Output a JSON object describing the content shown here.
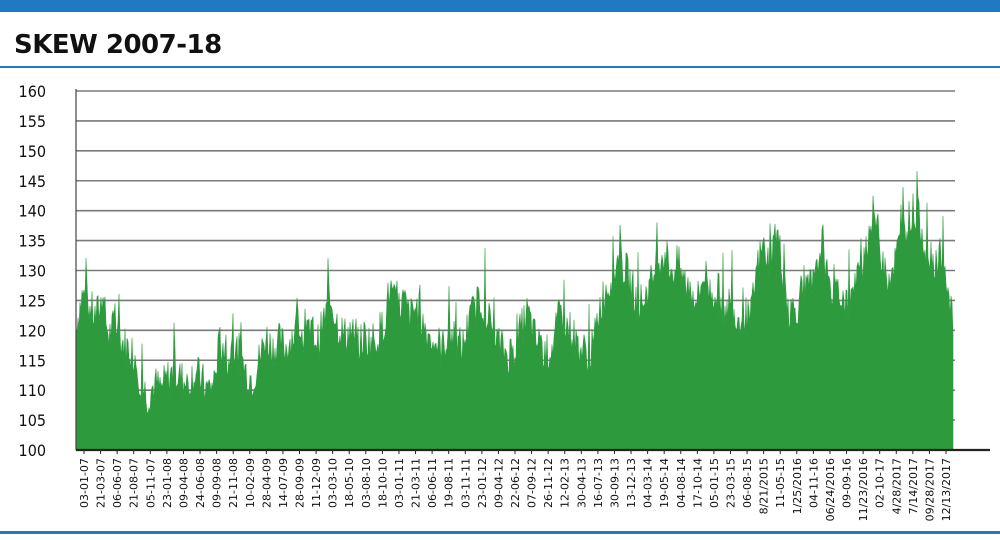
{
  "header": {
    "title": "SKEW 2007-18"
  },
  "colors": {
    "accent": "#1f7ac1",
    "series": "#2e9a3e",
    "grid": "#7a7a7a"
  },
  "chart_data": {
    "type": "area",
    "title": "SKEW 2007-18",
    "xlabel": "",
    "ylabel": "",
    "ylim": [
      100,
      160
    ],
    "grid": true,
    "legend": "none",
    "y_ticks": [
      100,
      105,
      110,
      115,
      120,
      125,
      130,
      135,
      140,
      145,
      150,
      155,
      160
    ],
    "x_tick_labels": [
      "03-01-07",
      "21-03-07",
      "06-06-07",
      "21-08-07",
      "05-11-07",
      "23-01-08",
      "09-04-08",
      "24-06-08",
      "09-09-08",
      "21-11-08",
      "10-02-09",
      "28-04-09",
      "14-07-09",
      "28-09-09",
      "11-12-09",
      "03-03-10",
      "18-05-10",
      "03-08-10",
      "18-10-10",
      "03-01-11",
      "21-03-11",
      "06-06-11",
      "19-08-11",
      "03-11-11",
      "23-01-12",
      "09-04-12",
      "22-06-12",
      "07-09-12",
      "26-11-12",
      "12-02-13",
      "30-04-13",
      "16-07-13",
      "30-09-13",
      "13-12-13",
      "04-03-14",
      "19-05-14",
      "04-08-14",
      "17-10-14",
      "05-01-15",
      "23-03-15",
      "06-08-15",
      "8/21/2015",
      "11-05-15",
      "1/25/2016",
      "04-11-16",
      "06/24/2016",
      "09-09-16",
      "11/23/2016",
      "02-10-17",
      "4/28/2017",
      "7/14/2017",
      "09/28/2017",
      "12/13/2017"
    ],
    "series": [
      {
        "values": [
          {
            "x": "2007-01",
            "y": 121
          },
          {
            "x": "2007-02",
            "y": 126
          },
          {
            "x": "2007-03",
            "y": 124
          },
          {
            "x": "2007-04",
            "y": 122
          },
          {
            "x": "2007-05",
            "y": 125
          },
          {
            "x": "2007-06",
            "y": 119
          },
          {
            "x": "2007-07",
            "y": 121
          },
          {
            "x": "2007-08",
            "y": 118
          },
          {
            "x": "2007-09",
            "y": 117
          },
          {
            "x": "2007-10",
            "y": 116
          },
          {
            "x": "2007-11",
            "y": 111
          },
          {
            "x": "2007-12",
            "y": 109
          },
          {
            "x": "2008-01",
            "y": 111
          },
          {
            "x": "2008-02",
            "y": 110
          },
          {
            "x": "2008-03",
            "y": 112
          },
          {
            "x": "2008-04",
            "y": 113
          },
          {
            "x": "2008-05",
            "y": 112
          },
          {
            "x": "2008-06",
            "y": 111
          },
          {
            "x": "2008-07",
            "y": 113
          },
          {
            "x": "2008-08",
            "y": 112
          },
          {
            "x": "2008-09",
            "y": 110
          },
          {
            "x": "2008-10",
            "y": 111
          },
          {
            "x": "2008-11",
            "y": 118
          },
          {
            "x": "2008-12",
            "y": 114
          },
          {
            "x": "2009-01",
            "y": 117
          },
          {
            "x": "2009-02",
            "y": 116
          },
          {
            "x": "2009-03",
            "y": 113
          },
          {
            "x": "2009-04",
            "y": 112
          },
          {
            "x": "2009-05",
            "y": 115
          },
          {
            "x": "2009-06",
            "y": 119
          },
          {
            "x": "2009-07",
            "y": 117
          },
          {
            "x": "2009-08",
            "y": 118
          },
          {
            "x": "2009-09",
            "y": 117
          },
          {
            "x": "2009-10",
            "y": 119
          },
          {
            "x": "2009-11",
            "y": 121
          },
          {
            "x": "2009-12",
            "y": 118
          },
          {
            "x": "2010-01",
            "y": 120
          },
          {
            "x": "2010-02",
            "y": 118
          },
          {
            "x": "2010-03",
            "y": 122
          },
          {
            "x": "2010-04",
            "y": 125
          },
          {
            "x": "2010-05",
            "y": 121
          },
          {
            "x": "2010-06",
            "y": 119
          },
          {
            "x": "2010-07",
            "y": 120
          },
          {
            "x": "2010-08",
            "y": 117
          },
          {
            "x": "2010-09",
            "y": 119
          },
          {
            "x": "2010-10",
            "y": 118
          },
          {
            "x": "2010-11",
            "y": 119
          },
          {
            "x": "2010-12",
            "y": 121
          },
          {
            "x": "2011-01",
            "y": 127
          },
          {
            "x": "2011-02",
            "y": 123
          },
          {
            "x": "2011-03",
            "y": 125
          },
          {
            "x": "2011-04",
            "y": 122
          },
          {
            "x": "2011-05",
            "y": 124
          },
          {
            "x": "2011-06",
            "y": 121
          },
          {
            "x": "2011-07",
            "y": 119
          },
          {
            "x": "2011-08",
            "y": 118
          },
          {
            "x": "2011-09",
            "y": 117
          },
          {
            "x": "2011-10",
            "y": 120
          },
          {
            "x": "2011-11",
            "y": 118
          },
          {
            "x": "2011-12",
            "y": 117
          },
          {
            "x": "2012-01",
            "y": 121
          },
          {
            "x": "2012-02",
            "y": 124
          },
          {
            "x": "2012-03",
            "y": 125
          },
          {
            "x": "2012-04",
            "y": 122
          },
          {
            "x": "2012-05",
            "y": 119
          },
          {
            "x": "2012-06",
            "y": 117
          },
          {
            "x": "2012-07",
            "y": 116
          },
          {
            "x": "2012-08",
            "y": 117
          },
          {
            "x": "2012-09",
            "y": 120
          },
          {
            "x": "2012-10",
            "y": 123
          },
          {
            "x": "2012-11",
            "y": 119
          },
          {
            "x": "2012-12",
            "y": 117
          },
          {
            "x": "2013-01",
            "y": 116
          },
          {
            "x": "2013-02",
            "y": 118
          },
          {
            "x": "2013-03",
            "y": 123
          },
          {
            "x": "2013-04",
            "y": 121
          },
          {
            "x": "2013-05",
            "y": 119
          },
          {
            "x": "2013-06",
            "y": 117
          },
          {
            "x": "2013-07",
            "y": 116
          },
          {
            "x": "2013-08",
            "y": 117
          },
          {
            "x": "2013-09",
            "y": 124
          },
          {
            "x": "2013-10",
            "y": 127
          },
          {
            "x": "2013-11",
            "y": 129
          },
          {
            "x": "2013-12",
            "y": 132
          },
          {
            "x": "2014-01",
            "y": 130
          },
          {
            "x": "2014-02",
            "y": 127
          },
          {
            "x": "2014-03",
            "y": 124
          },
          {
            "x": "2014-04",
            "y": 126
          },
          {
            "x": "2014-05",
            "y": 128
          },
          {
            "x": "2014-06",
            "y": 132
          },
          {
            "x": "2014-07",
            "y": 133
          },
          {
            "x": "2014-08",
            "y": 130
          },
          {
            "x": "2014-09",
            "y": 131
          },
          {
            "x": "2014-10",
            "y": 128
          },
          {
            "x": "2014-11",
            "y": 127
          },
          {
            "x": "2014-12",
            "y": 125
          },
          {
            "x": "2015-01",
            "y": 130
          },
          {
            "x": "2015-02",
            "y": 126
          },
          {
            "x": "2015-03",
            "y": 127
          },
          {
            "x": "2015-04",
            "y": 123
          },
          {
            "x": "2015-05",
            "y": 125
          },
          {
            "x": "2015-06",
            "y": 122
          },
          {
            "x": "2015-07",
            "y": 123
          },
          {
            "x": "2015-08",
            "y": 121
          },
          {
            "x": "2015-09",
            "y": 130
          },
          {
            "x": "2015-10",
            "y": 134
          },
          {
            "x": "2015-11",
            "y": 131
          },
          {
            "x": "2015-12",
            "y": 137
          },
          {
            "x": "2016-01",
            "y": 130
          },
          {
            "x": "2016-02",
            "y": 123
          },
          {
            "x": "2016-03",
            "y": 124
          },
          {
            "x": "2016-04",
            "y": 125
          },
          {
            "x": "2016-05",
            "y": 127
          },
          {
            "x": "2016-06",
            "y": 128
          },
          {
            "x": "2016-07",
            "y": 136
          },
          {
            "x": "2016-08",
            "y": 126
          },
          {
            "x": "2016-09",
            "y": 128
          },
          {
            "x": "2016-10",
            "y": 126
          },
          {
            "x": "2016-11",
            "y": 124
          },
          {
            "x": "2016-12",
            "y": 127
          },
          {
            "x": "2017-01",
            "y": 130
          },
          {
            "x": "2017-02",
            "y": 136
          },
          {
            "x": "2017-03",
            "y": 140
          },
          {
            "x": "2017-04",
            "y": 133
          },
          {
            "x": "2017-05",
            "y": 129
          },
          {
            "x": "2017-06",
            "y": 131
          },
          {
            "x": "2017-07",
            "y": 135
          },
          {
            "x": "2017-08",
            "y": 138
          },
          {
            "x": "2017-09",
            "y": 140
          },
          {
            "x": "2017-10",
            "y": 138
          },
          {
            "x": "2017-11",
            "y": 133
          },
          {
            "x": "2017-12",
            "y": 132
          },
          {
            "x": "2018-01",
            "y": 132
          },
          {
            "x": "2018-02",
            "y": 126
          },
          {
            "x": "2018-03",
            "y": 122
          }
        ]
      }
    ]
  }
}
